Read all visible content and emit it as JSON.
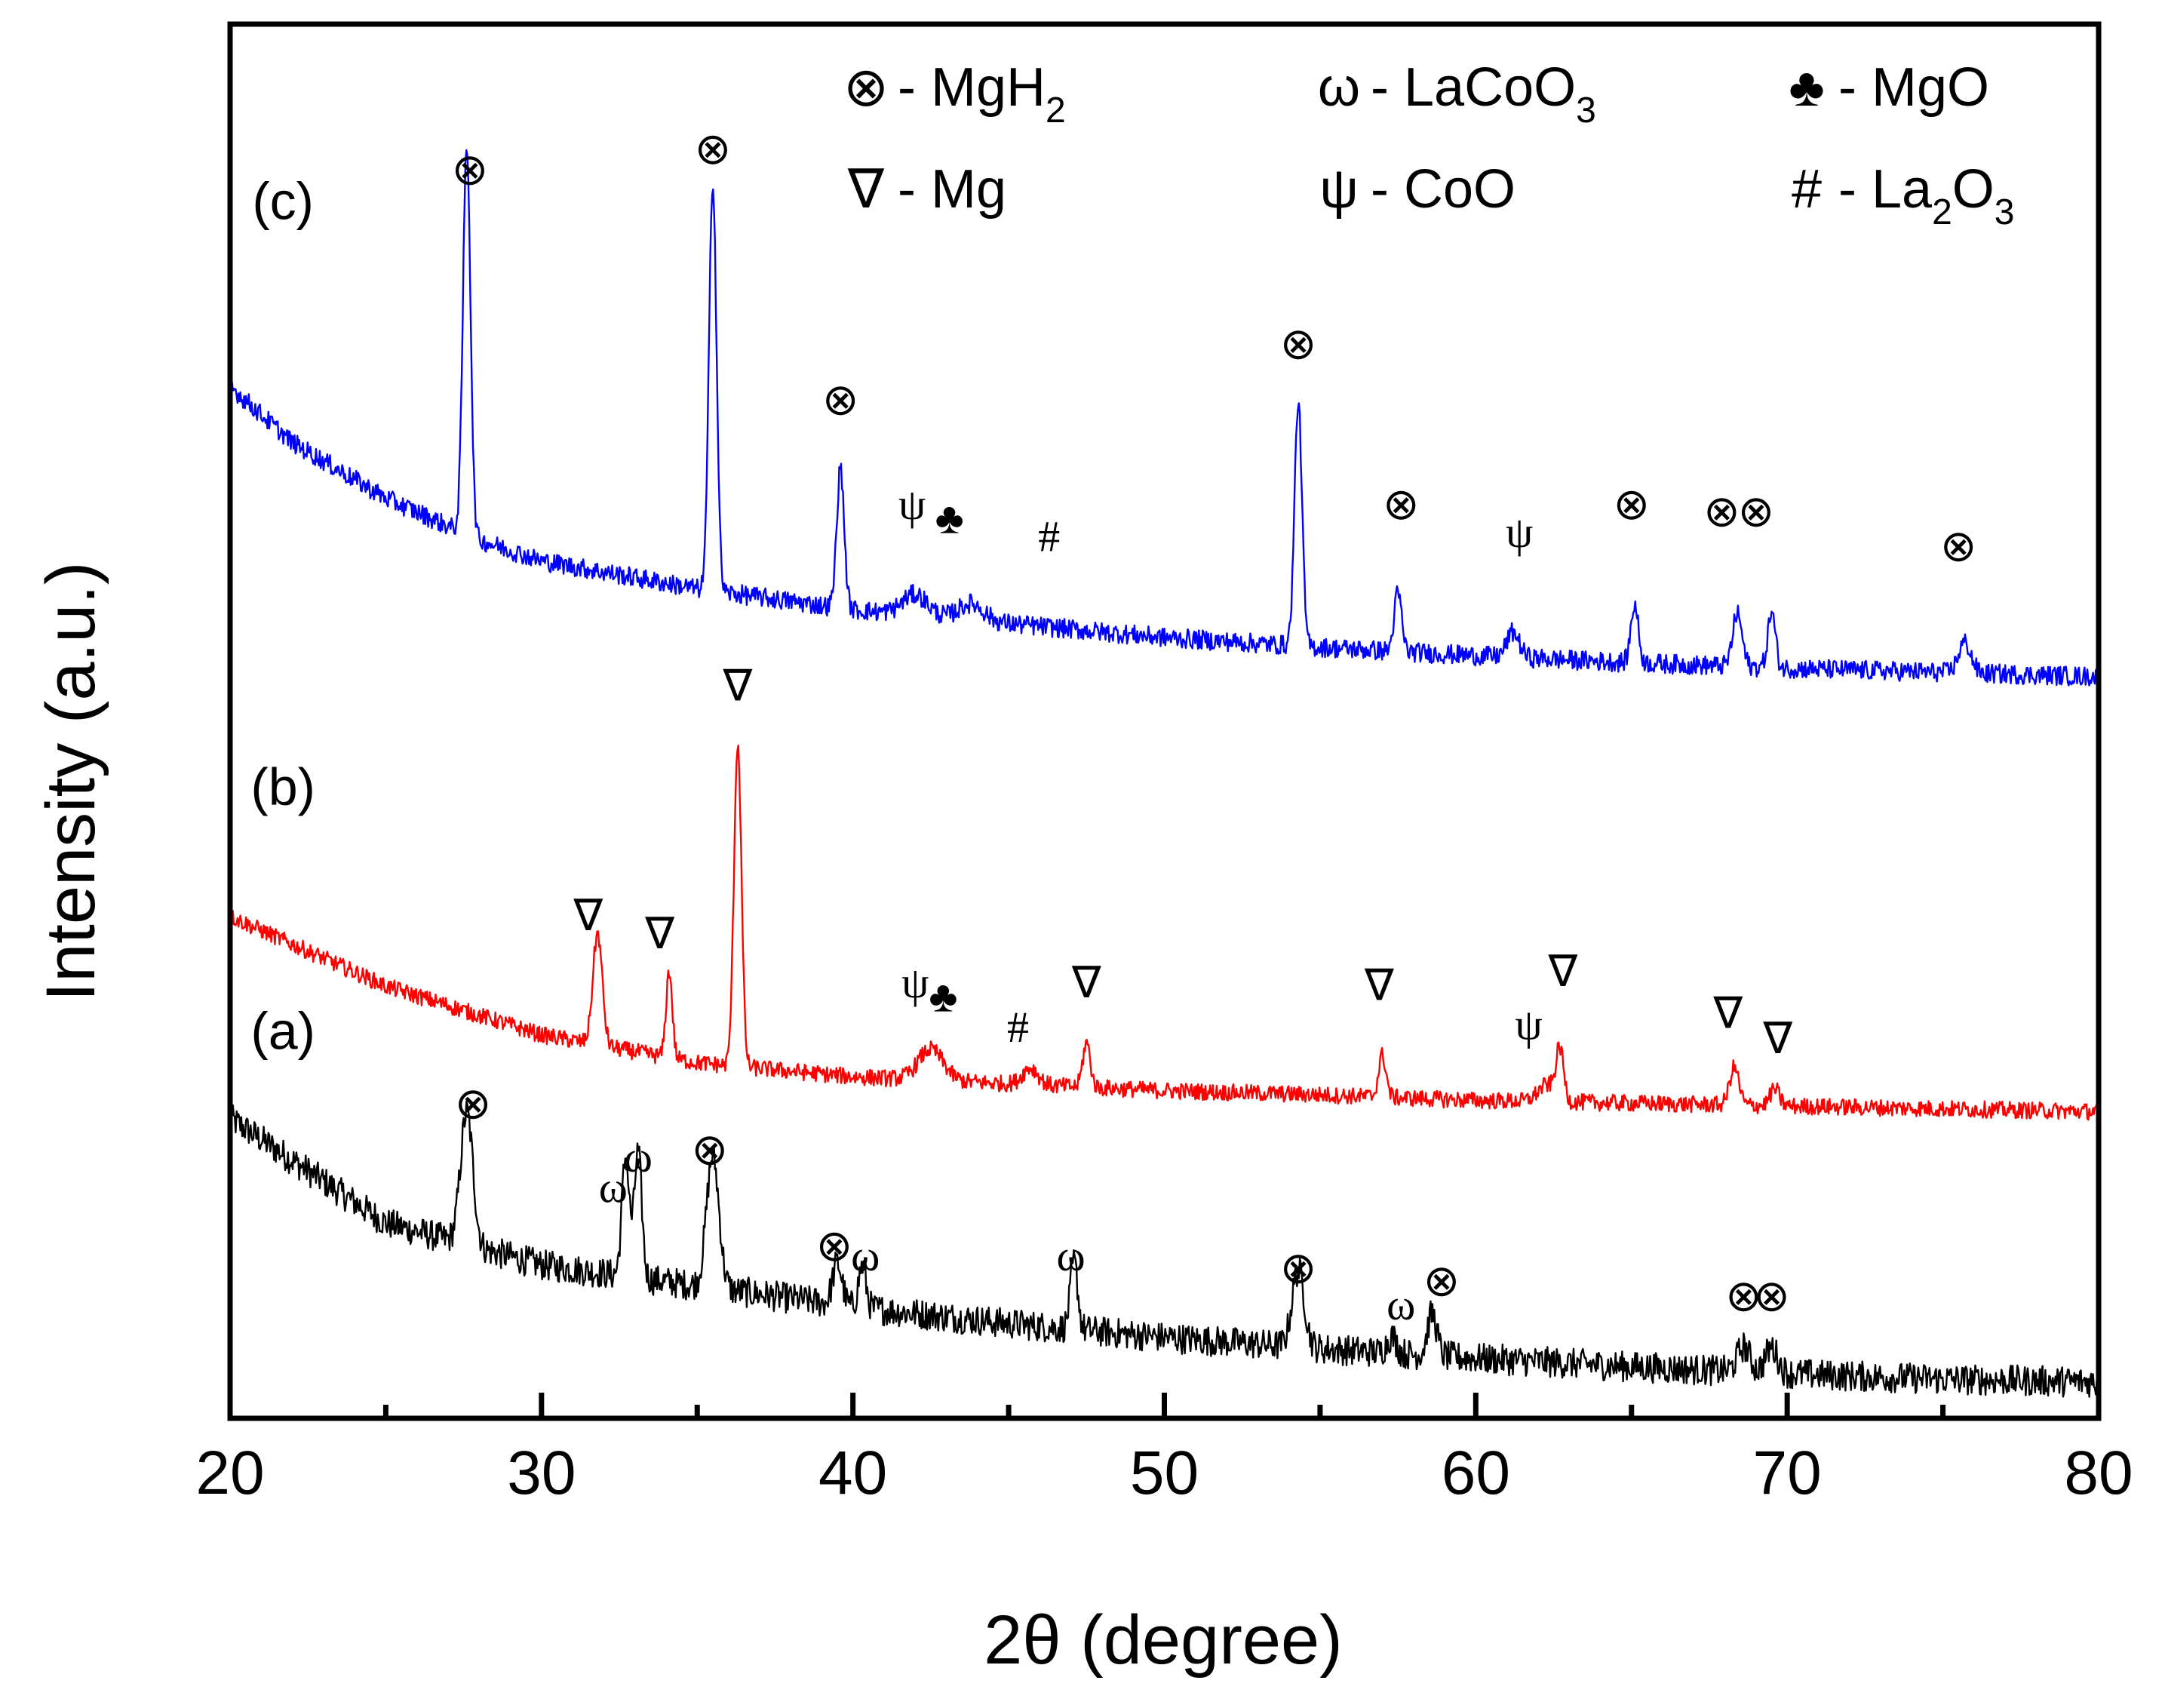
{
  "chart_data": {
    "type": "line",
    "title": "",
    "xlabel": "2θ (degree)",
    "ylabel": "Intensity (a.u.)",
    "xlim": [
      20,
      80
    ],
    "xticks": [
      20,
      30,
      40,
      50,
      60,
      70,
      80
    ],
    "xtick_labels": [
      "20",
      "30",
      "40",
      "50",
      "60",
      "70",
      "80"
    ],
    "minor_xticks": [
      25,
      35,
      45,
      55,
      65,
      75
    ],
    "ylim": [
      0,
      1
    ],
    "yticks_shown": false,
    "grid": false,
    "legend": {
      "position": "top",
      "entries": [
        {
          "symbol": "⊗",
          "text": "- MgH",
          "sub": "2",
          "phase": "MgH2"
        },
        {
          "symbol": "ω",
          "text": "- LaCoO",
          "sub": "3",
          "phase": "LaCoO3"
        },
        {
          "symbol": "♣",
          "text": "- MgO",
          "sub": "",
          "phase": "MgO"
        },
        {
          "symbol": "∇",
          "text": "- Mg",
          "sub": "",
          "phase": "Mg"
        },
        {
          "symbol": "ψ",
          "text": "- CoO",
          "sub": "",
          "phase": "CoO"
        },
        {
          "symbol": "#",
          "text": "- La",
          "sub": "2",
          "text2": "O",
          "sub2": "3",
          "phase": "La2O3"
        }
      ]
    },
    "series": [
      {
        "name": "(a)",
        "color": "#000000",
        "baseline": [
          [
            20,
            0.215
          ],
          [
            25,
            0.14
          ],
          [
            30,
            0.11
          ],
          [
            35,
            0.095
          ],
          [
            40,
            0.08
          ],
          [
            45,
            0.068
          ],
          [
            50,
            0.058
          ],
          [
            55,
            0.05
          ],
          [
            60,
            0.043
          ],
          [
            65,
            0.037
          ],
          [
            70,
            0.032
          ],
          [
            75,
            0.028
          ],
          [
            80,
            0.026
          ]
        ],
        "noise": 0.011,
        "peaks": [
          {
            "x": 27.6,
            "h": 0.095,
            "w": 0.2
          },
          {
            "x": 32.7,
            "h": 0.085,
            "w": 0.12
          },
          {
            "x": 33.1,
            "h": 0.09,
            "w": 0.12
          },
          {
            "x": 35.5,
            "h": 0.095,
            "w": 0.2
          },
          {
            "x": 39.5,
            "h": 0.03,
            "w": 0.15
          },
          {
            "x": 40.3,
            "h": 0.03,
            "w": 0.12
          },
          {
            "x": 47.1,
            "h": 0.048,
            "w": 0.12
          },
          {
            "x": 54.3,
            "h": 0.055,
            "w": 0.2
          },
          {
            "x": 57.3,
            "h": 0.012,
            "w": 0.15
          },
          {
            "x": 58.6,
            "h": 0.03,
            "w": 0.15
          },
          {
            "x": 68.6,
            "h": 0.018,
            "w": 0.2
          },
          {
            "x": 69.5,
            "h": 0.018,
            "w": 0.2
          }
        ]
      },
      {
        "name": "(b)",
        "color": "#ff0000",
        "baseline": [
          [
            20,
            0.36
          ],
          [
            25,
            0.31
          ],
          [
            30,
            0.275
          ],
          [
            35,
            0.255
          ],
          [
            40,
            0.245
          ],
          [
            45,
            0.24
          ],
          [
            50,
            0.235
          ],
          [
            55,
            0.232
          ],
          [
            60,
            0.228
          ],
          [
            65,
            0.226
          ],
          [
            70,
            0.224
          ],
          [
            75,
            0.222
          ],
          [
            80,
            0.22
          ]
        ],
        "noise": 0.006,
        "peaks": [
          {
            "x": 31.8,
            "h": 0.08,
            "w": 0.15
          },
          {
            "x": 34.1,
            "h": 0.062,
            "w": 0.1
          },
          {
            "x": 36.3,
            "h": 0.232,
            "w": 0.12
          },
          {
            "x": 42.5,
            "h": 0.022,
            "w": 0.4
          },
          {
            "x": 45.7,
            "h": 0.012,
            "w": 0.25
          },
          {
            "x": 47.5,
            "h": 0.032,
            "w": 0.12
          },
          {
            "x": 57.0,
            "h": 0.03,
            "w": 0.12
          },
          {
            "x": 62.3,
            "h": 0.012,
            "w": 0.3
          },
          {
            "x": 62.7,
            "h": 0.035,
            "w": 0.12
          },
          {
            "x": 68.3,
            "h": 0.027,
            "w": 0.15
          },
          {
            "x": 69.6,
            "h": 0.012,
            "w": 0.15
          }
        ]
      },
      {
        "name": "(c)",
        "color": "#0000ff",
        "baseline": [
          [
            20,
            0.74
          ],
          [
            22,
            0.7
          ],
          [
            25,
            0.66
          ],
          [
            28,
            0.63
          ],
          [
            30,
            0.615
          ],
          [
            35,
            0.595
          ],
          [
            40,
            0.58
          ],
          [
            45,
            0.57
          ],
          [
            50,
            0.56
          ],
          [
            55,
            0.553
          ],
          [
            60,
            0.547
          ],
          [
            65,
            0.542
          ],
          [
            70,
            0.538
          ],
          [
            75,
            0.535
          ],
          [
            80,
            0.532
          ]
        ],
        "noise": 0.007,
        "peaks": [
          {
            "x": 27.6,
            "h": 0.28,
            "w": 0.12
          },
          {
            "x": 35.5,
            "h": 0.295,
            "w": 0.12
          },
          {
            "x": 39.6,
            "h": 0.1,
            "w": 0.12
          },
          {
            "x": 42.0,
            "h": 0.015,
            "w": 0.4
          },
          {
            "x": 43.8,
            "h": 0.012,
            "w": 0.4
          },
          {
            "x": 54.3,
            "h": 0.175,
            "w": 0.12
          },
          {
            "x": 57.5,
            "h": 0.042,
            "w": 0.12
          },
          {
            "x": 61.2,
            "h": 0.018,
            "w": 0.2
          },
          {
            "x": 65.1,
            "h": 0.042,
            "w": 0.12
          },
          {
            "x": 68.4,
            "h": 0.038,
            "w": 0.15
          },
          {
            "x": 69.5,
            "h": 0.04,
            "w": 0.12
          },
          {
            "x": 75.7,
            "h": 0.022,
            "w": 0.2
          }
        ]
      }
    ],
    "trace_labels": [
      {
        "text": "(a)",
        "x": 21.7,
        "y": 0.265
      },
      {
        "text": "(b)",
        "x": 21.7,
        "y": 0.44
      },
      {
        "text": "(c)",
        "x": 21.7,
        "y": 0.86
      }
    ],
    "annotations": [
      {
        "symbol": "⊗",
        "x": 27.7,
        "y": 0.885,
        "phase": "MgH2"
      },
      {
        "symbol": "⊗",
        "x": 35.5,
        "y": 0.9,
        "phase": "MgH2"
      },
      {
        "symbol": "⊗",
        "x": 39.6,
        "y": 0.72,
        "phase": "MgH2"
      },
      {
        "symbol": "ψ",
        "x": 41.9,
        "y": 0.645,
        "phase": "CoO"
      },
      {
        "symbol": "♣",
        "x": 43.1,
        "y": 0.635,
        "phase": "MgO"
      },
      {
        "symbol": "#",
        "x": 46.3,
        "y": 0.622,
        "phase": "La2O3"
      },
      {
        "symbol": "⊗",
        "x": 54.3,
        "y": 0.76,
        "phase": "MgH2"
      },
      {
        "symbol": "⊗",
        "x": 57.6,
        "y": 0.645,
        "phase": "MgH2"
      },
      {
        "symbol": "ψ",
        "x": 61.4,
        "y": 0.625,
        "phase": "CoO"
      },
      {
        "symbol": "⊗",
        "x": 65.0,
        "y": 0.645,
        "phase": "MgH2"
      },
      {
        "symbol": "⊗",
        "x": 67.9,
        "y": 0.64,
        "phase": "MgH2"
      },
      {
        "symbol": "⊗",
        "x": 69.0,
        "y": 0.64,
        "phase": "MgH2"
      },
      {
        "symbol": "⊗",
        "x": 75.5,
        "y": 0.615,
        "phase": "MgH2"
      },
      {
        "symbol": "∇",
        "x": 36.3,
        "y": 0.515,
        "phase": "Mg"
      },
      {
        "symbol": "∇",
        "x": 31.5,
        "y": 0.35,
        "phase": "Mg"
      },
      {
        "symbol": "∇",
        "x": 33.8,
        "y": 0.337,
        "phase": "Mg"
      },
      {
        "symbol": "ψ",
        "x": 42.0,
        "y": 0.302,
        "phase": "CoO"
      },
      {
        "symbol": "♣",
        "x": 42.9,
        "y": 0.292,
        "phase": "MgO"
      },
      {
        "symbol": "#",
        "x": 45.3,
        "y": 0.27,
        "phase": "La2O3"
      },
      {
        "symbol": "∇",
        "x": 47.5,
        "y": 0.302,
        "phase": "Mg"
      },
      {
        "symbol": "∇",
        "x": 56.9,
        "y": 0.3,
        "phase": "Mg"
      },
      {
        "symbol": "ψ",
        "x": 61.7,
        "y": 0.272,
        "phase": "CoO"
      },
      {
        "symbol": "∇",
        "x": 62.8,
        "y": 0.31,
        "phase": "Mg"
      },
      {
        "symbol": "∇",
        "x": 68.1,
        "y": 0.28,
        "phase": "Mg"
      },
      {
        "symbol": "∇",
        "x": 69.7,
        "y": 0.262,
        "phase": "Mg"
      },
      {
        "symbol": "⊗",
        "x": 27.8,
        "y": 0.215,
        "phase": "MgH2"
      },
      {
        "symbol": "ω",
        "x": 32.3,
        "y": 0.155,
        "phase": "LaCoO3"
      },
      {
        "symbol": "ω",
        "x": 33.1,
        "y": 0.177,
        "phase": "LaCoO3"
      },
      {
        "symbol": "⊗",
        "x": 35.4,
        "y": 0.182,
        "phase": "MgH2"
      },
      {
        "symbol": "⊗",
        "x": 39.4,
        "y": 0.113,
        "phase": "MgH2"
      },
      {
        "symbol": "ω",
        "x": 40.4,
        "y": 0.106,
        "phase": "LaCoO3"
      },
      {
        "symbol": "ω",
        "x": 47.0,
        "y": 0.106,
        "phase": "LaCoO3"
      },
      {
        "symbol": "⊗",
        "x": 54.3,
        "y": 0.097,
        "phase": "MgH2"
      },
      {
        "symbol": "ω",
        "x": 57.6,
        "y": 0.071,
        "phase": "LaCoO3"
      },
      {
        "symbol": "⊗",
        "x": 58.9,
        "y": 0.088,
        "phase": "MgH2"
      },
      {
        "symbol": "⊗",
        "x": 68.6,
        "y": 0.077,
        "phase": "MgH2"
      },
      {
        "symbol": "⊗",
        "x": 69.5,
        "y": 0.077,
        "phase": "MgH2"
      }
    ]
  }
}
